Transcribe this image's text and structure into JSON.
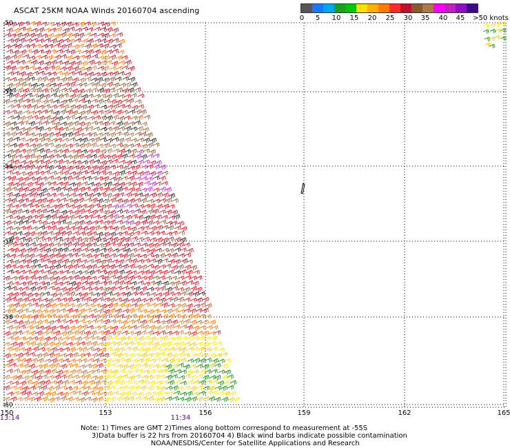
{
  "title": "ASCAT 25KM NOAA Winds 20160704 ascending",
  "legend": {
    "colors": [
      "#555555",
      "#1878ff",
      "#00a8f0",
      "#1aa01a",
      "#00c800",
      "#ffe000",
      "#ffb000",
      "#ff7a00",
      "#ff2a2a",
      "#c01030",
      "#8b5a2b",
      "#b0784a",
      "#ff00ff",
      "#c020c0",
      "#8a10c8",
      "#3a0a8a"
    ],
    "ticks": [
      "0",
      "5",
      "10",
      "15",
      "20",
      "25",
      "30",
      "35",
      "40",
      "45",
      ">50 knots"
    ]
  },
  "map": {
    "lat_labels": [
      "-50",
      "-52",
      "-54",
      "-56",
      "-58",
      "-60"
    ],
    "lon_labels": [
      "150",
      "153",
      "156",
      "159",
      "162",
      "165"
    ],
    "time_labels": [
      "13:14",
      "11:34"
    ]
  },
  "notes": [
    "Note: 1) Times are GMT 2)Times along bottom correspond to measurement at -55S",
    "     3)Data buffer is 22 hrs from 20160704 4) Black wind barbs indicate possible contamination",
    "                                NOAA/NESDIS/Center for Satellite Applications and Research"
  ]
}
